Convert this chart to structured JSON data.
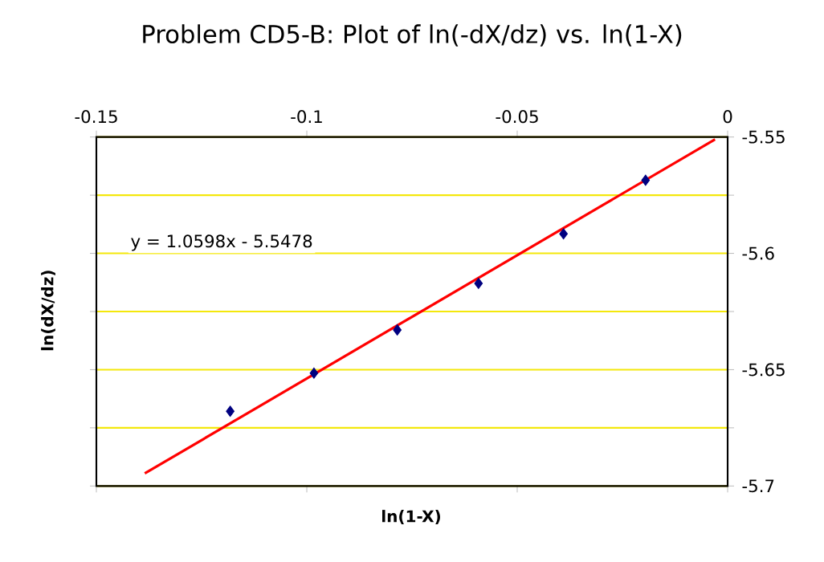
{
  "chart_data": {
    "type": "scatter",
    "title": "Problem CD5-B: Plot of ln(-dX/dz) vs. ln(1-X)",
    "xlabel": "ln(1-X)",
    "ylabel": "ln(dX/dz)",
    "xlim": [
      -0.15,
      0
    ],
    "xticks": [
      -0.15,
      -0.1,
      -0.05,
      0
    ],
    "ylim": [
      -5.7,
      -5.55
    ],
    "yticks": [
      -5.7,
      {
        "value": -5.675,
        "label": null
      },
      -5.65,
      {
        "value": -5.625,
        "label": null
      },
      -5.6,
      {
        "value": -5.575,
        "label": null
      },
      -5.55
    ],
    "grid": "y",
    "annotations": [
      "y = 1.0598x - 5.5478"
    ],
    "series": [
      {
        "color": "#000080",
        "marker": "diamond",
        "x": [
          -0.1182,
          -0.0983,
          -0.0785,
          -0.0592,
          -0.039,
          -0.0195
        ],
        "values": [
          -5.6679,
          -5.6515,
          -5.6329,
          -5.6129,
          -5.5916,
          -5.5686
        ]
      },
      {
        "type": "line",
        "color": "#ff0000",
        "marker": "none",
        "line_style": "solid",
        "x": [
          -0.1385,
          -0.003
        ],
        "values": [
          -5.6946,
          -5.551
        ]
      }
    ]
  }
}
